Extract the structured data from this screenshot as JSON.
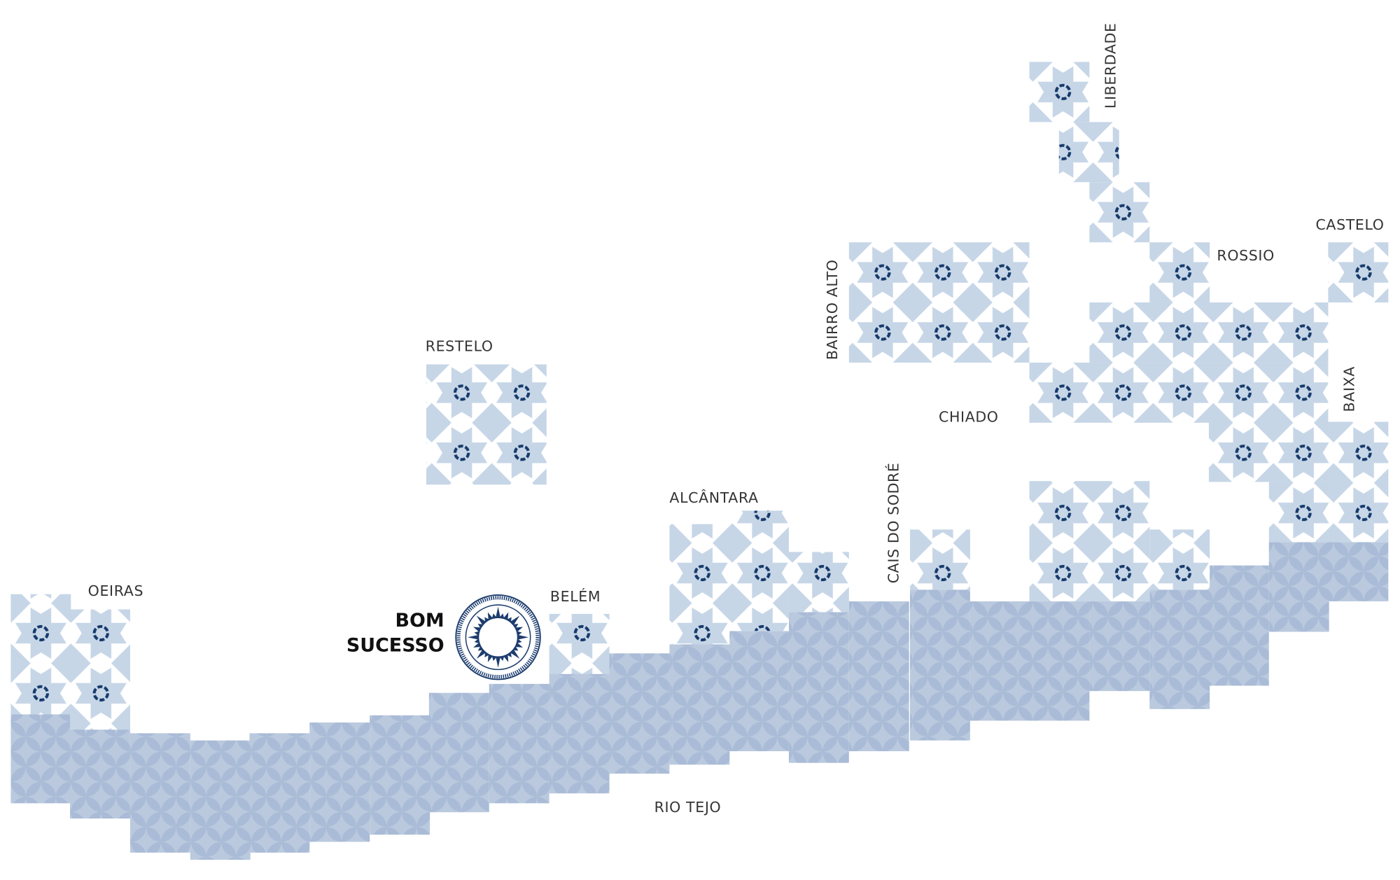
{
  "map": {
    "labels": {
      "oeiras": "OEIRAS",
      "restelo": "RESTELO",
      "bom_sucesso_line1": "BOM",
      "bom_sucesso_line2": "SUCESSO",
      "belem": "BELÉM",
      "alcantara": "ALCÂNTARA",
      "cais_do_sodre": "CAIS DO SODRÉ",
      "chiado": "CHIADO",
      "bairro_alto": "BAIRRO ALTO",
      "liberdade": "LIBERDADE",
      "rossio": "ROSSIO",
      "castelo": "CASTELO",
      "baixa": "BAIXA",
      "rio_tejo": "RIO TEJO"
    },
    "colors": {
      "land_tile": "#c6d6e7",
      "tile_center": "#163a6b",
      "water_tile": "#a3b7d3",
      "compass": "#1d3d6e",
      "highlight_label": "#111111"
    },
    "highlight": "BOM SUCESSO"
  }
}
